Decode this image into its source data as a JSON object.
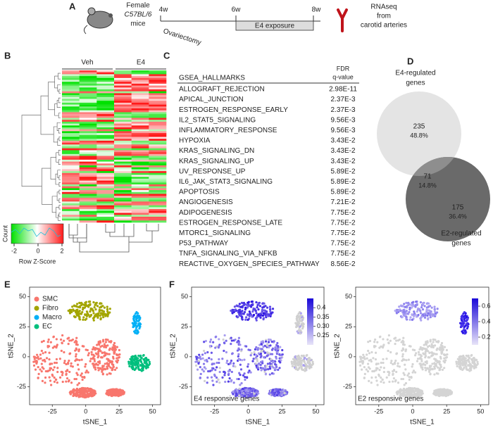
{
  "panel_labels": [
    "A",
    "B",
    "C",
    "D",
    "E",
    "F"
  ],
  "timeline": {
    "subject": [
      "Female",
      "C57BL/6",
      "mice"
    ],
    "weeks": [
      "4w",
      "6w",
      "8w"
    ],
    "surgery": "Ovariectomy",
    "treatment": "E4 exposure",
    "readout": [
      "RNAseq",
      "from",
      "carotid arteries"
    ]
  },
  "heatmap": {
    "groups": [
      "Veh",
      "E4"
    ],
    "key": {
      "ylabel": "Count",
      "ticks": [
        -2,
        0,
        2
      ],
      "xlabel": "Row Z-Score"
    }
  },
  "gsea": {
    "header": [
      "GSEA_HALLMARKS",
      "FDR",
      "q-value"
    ],
    "rows": [
      [
        "ALLOGRAFT_REJECTION",
        "2.98E-11"
      ],
      [
        "APICAL_JUNCTION",
        "2.37E-3"
      ],
      [
        "ESTROGEN_RESPONSE_EARLY",
        "2.37E-3"
      ],
      [
        "IL2_STAT5_SIGNALING",
        "9.56E-3"
      ],
      [
        "INFLAMMATORY_RESPONSE",
        "9.56E-3"
      ],
      [
        "HYPOXIA",
        "3.43E-2"
      ],
      [
        "KRAS_SIGNALING_DN",
        "3.43E-2"
      ],
      [
        "KRAS_SIGNALING_UP",
        "3.43E-2"
      ],
      [
        "UV_RESPONSE_UP",
        "5.89E-2"
      ],
      [
        "IL6_JAK_STAT3_SIGNALING",
        "5.89E-2"
      ],
      [
        "APOPTOSIS",
        "5.89E-2"
      ],
      [
        "ANGIOGENESIS",
        "7.21E-2"
      ],
      [
        "ADIPOGENESIS",
        "7.75E-2"
      ],
      [
        "ESTROGEN_RESPONSE_LATE",
        "7.75E-2"
      ],
      [
        "MTORC1_SIGNALING",
        "7.75E-2"
      ],
      [
        "P53_PATHWAY",
        "7.75E-2"
      ],
      [
        "TNFA_SIGNALING_VIA_NFKB",
        "7.75E-2"
      ],
      [
        "REACTIVE_OXYGEN_SPECIES_PATHWAY",
        "8.56E-2"
      ]
    ]
  },
  "venn": {
    "e4": {
      "label": [
        "E4-regulated",
        "genes"
      ],
      "count": 235,
      "percent": "48.8%"
    },
    "both": {
      "count": 71,
      "percent": "14.8%"
    },
    "e2": {
      "label": [
        "E2-regulated",
        "genes"
      ],
      "count": 175,
      "percent": "36.4%"
    }
  },
  "tsne": {
    "xlabel": "tSNE_1",
    "ylabel": "tSNE_2",
    "xlim": [
      -42,
      56
    ],
    "ylim": [
      -40,
      58
    ],
    "xticks": [
      -25,
      0,
      25,
      50
    ],
    "yticks": [
      50,
      25,
      0,
      -25
    ],
    "legend": [
      "SMC",
      "Fibro",
      "Macro",
      "EC"
    ],
    "colors": [
      "#f8766d",
      "#a3a500",
      "#00b0f6",
      "#00bf7d"
    ],
    "features": [
      {
        "caption": "E4 responsive genes",
        "clim": [
          0.2,
          0.45
        ],
        "colorbar": [
          0.4,
          0.35,
          {
            "value": 0.3,
            "label": "0.30"
          },
          0.25
        ]
      },
      {
        "caption": "E2 responsive genes",
        "clim": [
          0.1,
          0.7
        ],
        "colorbar": [
          0.6,
          0.4,
          0.2
        ]
      }
    ]
  }
}
